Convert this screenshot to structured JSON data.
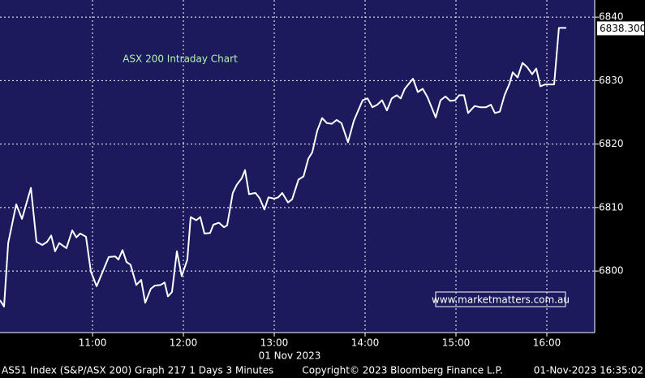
{
  "chart_data": {
    "type": "line",
    "title": "ASX 200 Intraday Chart",
    "x_axis_label": "01 Nov 2023",
    "watermark": "www.marketmatters.com.au",
    "footer": [
      "AS51 Index (S&P/ASX 200) Graph 217 1 Days 3 Minutes",
      "Copyright© 2023 Bloomberg Finance L.P.",
      "01-Nov-2023 16:35:02"
    ],
    "x": [
      598.9,
      601.6,
      604.3,
      609.6,
      613.4,
      619.3,
      623.0,
      626.8,
      630.0,
      632.7,
      635.3,
      638.0,
      642.8,
      646.6,
      649.3,
      651.9,
      655.7,
      658.9,
      662.7,
      666.9,
      670.7,
      675.0,
      677.1,
      679.8,
      682.5,
      685.1,
      688.9,
      692.1,
      694.8,
      698.5,
      701.2,
      705.0,
      707.6,
      709.8,
      712.5,
      715.7,
      718.9,
      722.6,
      724.8,
      728.5,
      731.2,
      733.9,
      737.6,
      739.8,
      743.5,
      746.8,
      748.9,
      752.6,
      755.3,
      758.5,
      760.7,
      763.4,
      767.6,
      770.3,
      773.5,
      776.2,
      780.0,
      782.6,
      785.3,
      789.1,
      791.8,
      796.0,
      799.3,
      802.5,
      805.1,
      808.4,
      811.6,
      814.8,
      818.0,
      821.2,
      824.4,
      828.7,
      832.5,
      835.1,
      838.4,
      841.6,
      844.8,
      848.0,
      851.2,
      854.4,
      857.6,
      860.9,
      863.5,
      866.2,
      871.6,
      874.8,
      878.0,
      881.2,
      886.6,
      889.8,
      893.0,
      896.2,
      899.4,
      902.1,
      905.3,
      908.0,
      912.3,
      916.0,
      919.8,
      923.0,
      925.7,
      928.9,
      932.1,
      935.3,
      937.5,
      940.7,
      943.9,
      947.1,
      950.3,
      953.0,
      955.7,
      958.9,
      962.1,
      964.8,
      968.0,
      972.8
    ],
    "series": [
      {
        "color": "#ffffff",
        "values": [
          6795.4,
          6794.4,
          6804.4,
          6810.5,
          6808.2,
          6813.1,
          6804.6,
          6804.1,
          6804.6,
          6805.6,
          6803.1,
          6804.4,
          6803.6,
          6806.4,
          6805.3,
          6805.9,
          6805.4,
          6799.9,
          6797.6,
          6800.0,
          6802.2,
          6802.3,
          6801.8,
          6803.3,
          6801.4,
          6801.0,
          6797.8,
          6798.6,
          6795.0,
          6797.2,
          6797.7,
          6797.8,
          6798.2,
          6796.0,
          6796.7,
          6803.1,
          6799.2,
          6801.8,
          6808.5,
          6808.0,
          6808.5,
          6805.9,
          6806.0,
          6807.3,
          6807.6,
          6806.9,
          6807.2,
          6812.3,
          6813.6,
          6814.6,
          6815.9,
          6812.1,
          6812.3,
          6811.5,
          6809.7,
          6811.6,
          6811.4,
          6811.6,
          6812.3,
          6810.8,
          6811.3,
          6814.4,
          6814.9,
          6817.7,
          6818.7,
          6822.1,
          6824.1,
          6823.3,
          6823.2,
          6823.8,
          6823.3,
          6820.3,
          6823.6,
          6825.1,
          6826.9,
          6827.2,
          6825.8,
          6826.2,
          6826.9,
          6825.3,
          6827.2,
          6827.7,
          6827.2,
          6828.7,
          6830.3,
          6828.2,
          6828.7,
          6827.4,
          6824.2,
          6826.9,
          6827.5,
          6826.8,
          6826.9,
          6827.7,
          6827.7,
          6824.9,
          6826.0,
          6825.8,
          6825.8,
          6826.2,
          6824.9,
          6825.1,
          6827.7,
          6829.5,
          6831.3,
          6830.5,
          6832.8,
          6832.1,
          6831.0,
          6831.9,
          6829.1,
          6829.4,
          6829.4,
          6829.4,
          6838.3,
          6838.3
        ]
      }
    ],
    "last_price": {
      "value": 6838.3,
      "label": "6838.300"
    },
    "xlim": [
      598.9,
      991.6
    ],
    "ylim": [
      6790.3,
      6842.7
    ],
    "xticks": [
      {
        "value": 660,
        "label": "11:00"
      },
      {
        "value": 720,
        "label": "12:00"
      },
      {
        "value": 780,
        "label": "13:00"
      },
      {
        "value": 840,
        "label": "14:00"
      },
      {
        "value": 900,
        "label": "15:00"
      },
      {
        "value": 960,
        "label": "16:00"
      }
    ],
    "yticks": [
      6800,
      6810,
      6820,
      6830,
      6840
    ],
    "grid": true,
    "background": "#1a1a5c"
  }
}
